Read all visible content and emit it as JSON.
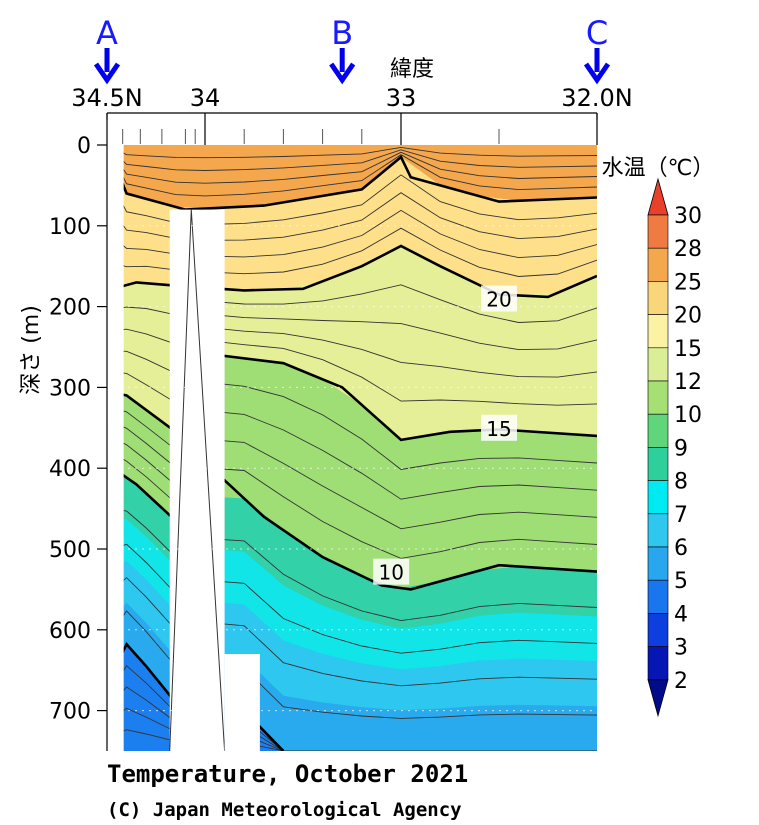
{
  "chart_data": {
    "type": "heatmap",
    "title": "Temperature, October 2021",
    "credit": "(C) Japan Meteorological Agency",
    "xlabel": "緯度",
    "ylabel": "深さ (m)",
    "x_ticks": [
      "34.5N",
      "34",
      "33",
      "32.0N"
    ],
    "x_tick_values": [
      34.5,
      34.0,
      33.0,
      32.0
    ],
    "xlim": [
      34.5,
      32.0
    ],
    "y_ticks": [
      0,
      100,
      200,
      300,
      400,
      500,
      600,
      700
    ],
    "ylim": [
      0,
      750
    ],
    "y_inverted": true,
    "station_markers": [
      {
        "label": "A",
        "latitude": 34.5
      },
      {
        "label": "B",
        "latitude": 33.3
      },
      {
        "label": "C",
        "latitude": 32.0
      }
    ],
    "colorbar": {
      "title": "水温（℃）",
      "levels": [
        30,
        28,
        25,
        20,
        15,
        12,
        10,
        9,
        8,
        7,
        6,
        5,
        4,
        3,
        2
      ],
      "colors": [
        "#e8402a",
        "#f07b42",
        "#f4a74c",
        "#f9d67a",
        "#fbf3a3",
        "#d9ee97",
        "#a6df73",
        "#5fd67a",
        "#2dcf9a",
        "#00eaf2",
        "#2ec7f0",
        "#29a7ee",
        "#1976ee",
        "#0c3ee0",
        "#0616b5",
        "#000c8a"
      ]
    },
    "contour_labels": [
      {
        "text": "20",
        "latitude": 32.5,
        "depth": 190
      },
      {
        "text": "15",
        "latitude": 32.5,
        "depth": 350
      },
      {
        "text": "10",
        "latitude": 33.05,
        "depth": 528
      }
    ],
    "isotherms": [
      {
        "value": 25,
        "points": [
          [
            34.5,
            0
          ],
          [
            34.4,
            60
          ],
          [
            34.1,
            80
          ],
          [
            33.7,
            75
          ],
          [
            33.2,
            55
          ],
          [
            33.0,
            15
          ],
          [
            32.95,
            40
          ],
          [
            32.5,
            70
          ],
          [
            32.0,
            65
          ]
        ]
      },
      {
        "value": 20,
        "points": [
          [
            34.5,
            180
          ],
          [
            34.35,
            170
          ],
          [
            34.1,
            175
          ],
          [
            33.8,
            180
          ],
          [
            33.5,
            178
          ],
          [
            33.2,
            150
          ],
          [
            33.0,
            125
          ],
          [
            32.8,
            150
          ],
          [
            32.5,
            185
          ],
          [
            32.25,
            188
          ],
          [
            32.0,
            162
          ]
        ]
      },
      {
        "value": 15,
        "points": [
          [
            34.5,
            305
          ],
          [
            34.4,
            310
          ],
          [
            34.15,
            355
          ],
          [
            34.0,
            258
          ],
          [
            33.6,
            270
          ],
          [
            33.3,
            300
          ],
          [
            33.0,
            365
          ],
          [
            32.75,
            355
          ],
          [
            32.5,
            352
          ],
          [
            32.0,
            360
          ]
        ]
      },
      {
        "value": 10,
        "points": [
          [
            34.5,
            395
          ],
          [
            34.35,
            420
          ],
          [
            34.15,
            465
          ],
          [
            33.9,
            415
          ],
          [
            33.7,
            460
          ],
          [
            33.4,
            510
          ],
          [
            33.1,
            545
          ],
          [
            32.95,
            550
          ],
          [
            32.5,
            520
          ],
          [
            32.0,
            528
          ]
        ]
      },
      {
        "value": 5,
        "points": [
          [
            34.5,
            665
          ],
          [
            34.4,
            618
          ],
          [
            34.3,
            645
          ],
          [
            34.15,
            690
          ],
          [
            33.8,
            700
          ],
          [
            33.6,
            750
          ]
        ]
      }
    ]
  }
}
